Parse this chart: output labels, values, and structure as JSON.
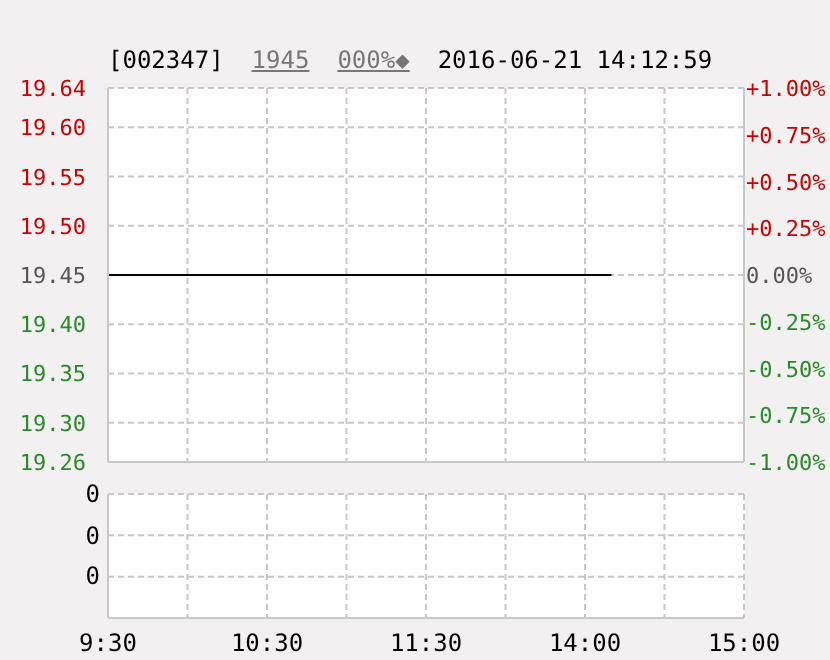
{
  "chart_data": [
    {
      "type": "line",
      "title": "[002347]",
      "annotations": [
        "1945",
        "000%◆",
        "2016-06-21 14:12:59"
      ],
      "categories": [
        null,
        null,
        null,
        null,
        null,
        null,
        null,
        null,
        null,
        null,
        null,
        null,
        null,
        null,
        null,
        null,
        null,
        null,
        null,
        null,
        null,
        null,
        null,
        null,
        null,
        null,
        null,
        null,
        null,
        null,
        null,
        null,
        null,
        null,
        null,
        null,
        null,
        null,
        null,
        null,
        null,
        null,
        null,
        null,
        null,
        null,
        null,
        null,
        null
      ],
      "series": [
        {
          "color": "#000000",
          "values": [
            19.45,
            19.45,
            19.45,
            19.45,
            19.45,
            19.45,
            19.45,
            19.45,
            19.45,
            19.45,
            19.45,
            19.45,
            19.45,
            19.45,
            19.45,
            19.45,
            19.45,
            19.45,
            19.45,
            19.45,
            19.45,
            19.45,
            19.45,
            19.45,
            19.45,
            19.45,
            19.45,
            19.45,
            19.45,
            19.45,
            19.45,
            19.45,
            19.45,
            19.45,
            19.45,
            19.45,
            19.45,
            19.45,
            19.45,
            null,
            null,
            null,
            null,
            null,
            null,
            null,
            null,
            null,
            null
          ]
        }
      ],
      "ylim": [
        19.26,
        19.64
      ],
      "yticks": [
        19.26,
        {
          "value": 19.3,
          "label": "19.30"
        },
        19.35,
        {
          "value": 19.4,
          "label": "19.40"
        },
        19.45,
        {
          "value": 19.5,
          "label": "19.50"
        },
        19.55,
        {
          "value": 19.6,
          "label": "19.60"
        },
        19.64
      ],
      "y2lim": [
        -1,
        1
      ],
      "y2ticks": [
        {
          "value": -1,
          "label": "-1.00%"
        },
        {
          "value": -0.75,
          "label": "-0.75%"
        },
        {
          "value": -0.5,
          "label": "-0.50%"
        },
        {
          "value": -0.25,
          "label": "-0.25%"
        },
        {
          "value": 0,
          "label": "0.00%"
        },
        {
          "value": 0.25,
          "label": "+0.25%"
        },
        {
          "value": 0.5,
          "label": "+0.50%"
        },
        {
          "value": 0.75,
          "label": "+0.75%"
        },
        {
          "value": 1,
          "label": "+1.00%"
        }
      ],
      "grid": true,
      "tick_labels": "y"
    },
    {
      "type": "other",
      "annotations": [
        "0",
        "0",
        "0"
      ],
      "categories": [
        "9:30",
        null,
        null,
        null,
        null,
        null,
        null,
        null,
        null,
        null,
        null,
        null,
        "10:30",
        null,
        null,
        null,
        null,
        null,
        null,
        null,
        null,
        null,
        null,
        null,
        "11:30",
        null,
        null,
        null,
        null,
        null,
        null,
        null,
        null,
        null,
        null,
        null,
        "14:00",
        null,
        null,
        null,
        null,
        null,
        null,
        null,
        null,
        null,
        null,
        null,
        "15:00"
      ]
    }
  ]
}
